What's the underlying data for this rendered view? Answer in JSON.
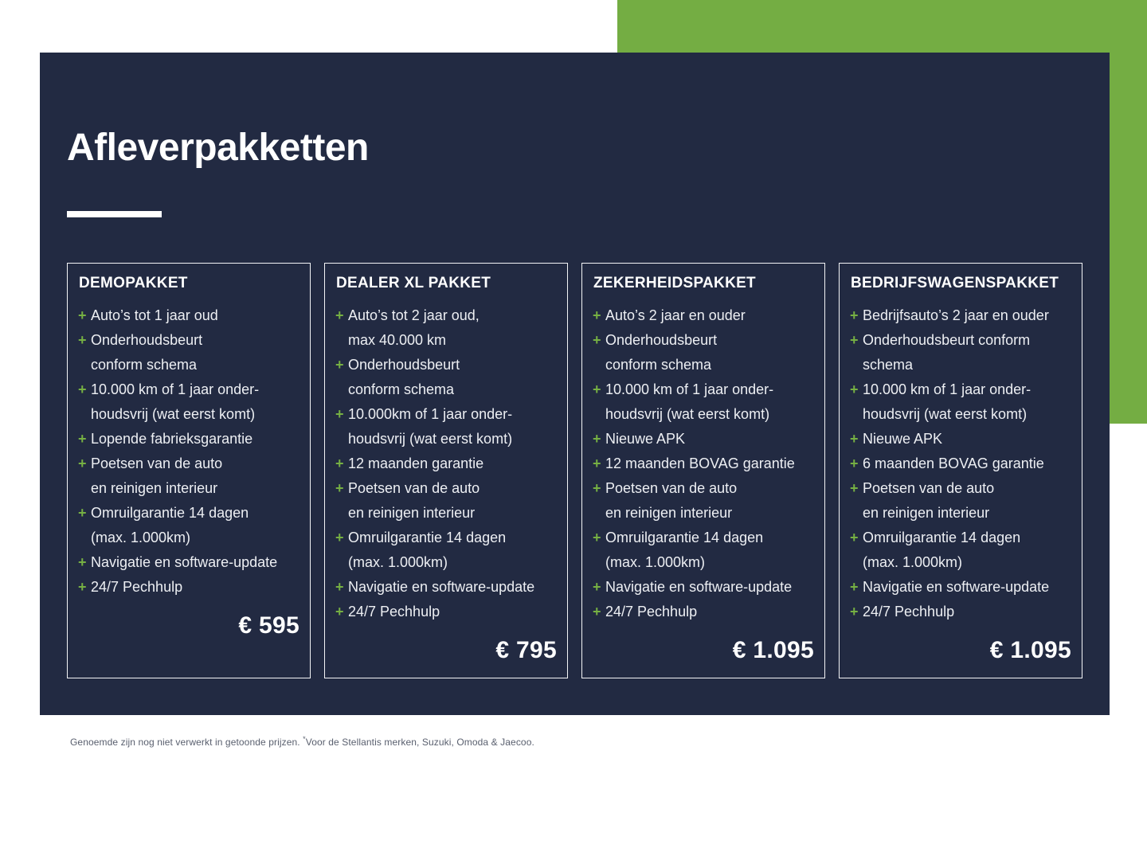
{
  "page": {
    "title": "Afleverpakketten"
  },
  "colors": {
    "navy": "#222a42",
    "green": "#74ad43",
    "plus_green": "#76b043",
    "card_border": "#f4f5f7",
    "list_text": "#edeff3",
    "white": "#ffffff",
    "footnote_gray": "#595f6e"
  },
  "icons": {
    "plus": "+"
  },
  "packages": [
    {
      "name": "DEMOPAKKET",
      "price": "€ 595",
      "features": [
        {
          "lines": [
            "Auto’s tot 1 jaar oud"
          ]
        },
        {
          "lines": [
            "Onderhoudsbeurt",
            "conform schema"
          ]
        },
        {
          "lines": [
            "10.000 km of 1 jaar onder-",
            "houdsvrij (wat eerst komt)"
          ]
        },
        {
          "lines": [
            "Lopende fabrieksgarantie"
          ]
        },
        {
          "lines": [
            "Poetsen van de auto",
            "en reinigen interieur"
          ]
        },
        {
          "lines": [
            "Omruilgarantie 14 dagen",
            "(max. 1.000km)"
          ]
        },
        {
          "lines": [
            "Navigatie en software-update"
          ],
          "sup": "*"
        },
        {
          "lines": [
            "24/7 Pechhulp"
          ]
        }
      ]
    },
    {
      "name": "DEALER XL PAKKET",
      "price": "€ 795",
      "features": [
        {
          "lines": [
            "Auto’s tot 2 jaar oud,",
            "max 40.000 km"
          ]
        },
        {
          "lines": [
            "Onderhoudsbeurt",
            "conform schema"
          ]
        },
        {
          "lines": [
            "10.000km of 1 jaar onder-",
            "houdsvrij (wat eerst komt)"
          ]
        },
        {
          "lines": [
            "12 maanden garantie"
          ]
        },
        {
          "lines": [
            "Poetsen van de auto",
            "en reinigen interieur"
          ]
        },
        {
          "lines": [
            "Omruilgarantie 14 dagen",
            "(max. 1.000km)"
          ]
        },
        {
          "lines": [
            "Navigatie en software-update"
          ],
          "sup": "*"
        },
        {
          "lines": [
            "24/7 Pechhulp"
          ]
        }
      ]
    },
    {
      "name": "ZEKERHEIDSPAKKET",
      "price": "€ 1.095",
      "features": [
        {
          "lines": [
            "Auto’s 2 jaar en ouder"
          ]
        },
        {
          "lines": [
            "Onderhoudsbeurt",
            "conform schema"
          ]
        },
        {
          "lines": [
            "10.000 km of 1 jaar onder-",
            "houdsvrij (wat eerst komt)"
          ]
        },
        {
          "lines": [
            "Nieuwe APK"
          ]
        },
        {
          "lines": [
            "12 maanden BOVAG garantie"
          ]
        },
        {
          "lines": [
            "Poetsen van de auto",
            "en reinigen interieur"
          ]
        },
        {
          "lines": [
            "Omruilgarantie 14 dagen",
            "(max. 1.000km)"
          ]
        },
        {
          "lines": [
            "Navigatie en software-update"
          ],
          "sup": "*"
        },
        {
          "lines": [
            "24/7 Pechhulp"
          ]
        }
      ]
    },
    {
      "name": "BEDRIJFSWAGENSPAKKET",
      "price": "€ 1.095",
      "features": [
        {
          "lines": [
            "Bedrijfsauto’s 2 jaar en ouder"
          ]
        },
        {
          "lines": [
            "Onderhoudsbeurt conform",
            "schema"
          ]
        },
        {
          "lines": [
            "10.000 km of 1 jaar onder-",
            "houdsvrij (wat eerst komt)"
          ]
        },
        {
          "lines": [
            "Nieuwe APK"
          ]
        },
        {
          "lines": [
            "6 maanden BOVAG garantie"
          ]
        },
        {
          "lines": [
            "Poetsen van de auto",
            "en reinigen interieur"
          ]
        },
        {
          "lines": [
            "Omruilgarantie 14 dagen",
            "(max. 1.000km)"
          ]
        },
        {
          "lines": [
            "Navigatie en software-update"
          ],
          "sup": "*"
        },
        {
          "lines": [
            "24/7 Pechhulp"
          ]
        }
      ]
    }
  ],
  "footnote": {
    "pre": "Genoemde zijn nog niet verwerkt in getoonde prijzen. ",
    "sup": "*",
    "post": "Voor de Stellantis merken, Suzuki, Omoda & Jaecoo."
  }
}
